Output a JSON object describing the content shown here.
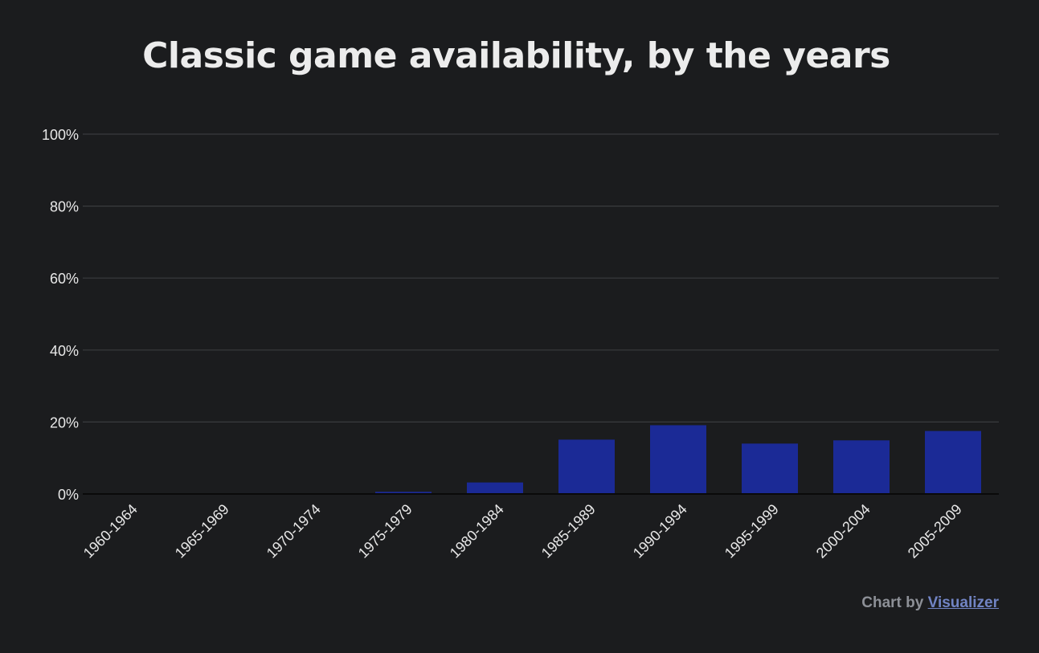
{
  "chart_data": {
    "type": "bar",
    "title": "Classic game availability, by the years",
    "xlabel": "",
    "ylabel": "",
    "categories": [
      "1960-1964",
      "1965-1969",
      "1970-1974",
      "1975-1979",
      "1980-1984",
      "1985-1989",
      "1990-1994",
      "1995-1999",
      "2000-2004",
      "2005-2009"
    ],
    "values": [
      0,
      0,
      0,
      0.6,
      3.2,
      15.1,
      19.1,
      14.0,
      14.9,
      17.5
    ],
    "ylim": [
      0,
      100
    ],
    "yticks": [
      0,
      20,
      40,
      60,
      80,
      100
    ],
    "ytick_labels": [
      "0%",
      "20%",
      "40%",
      "60%",
      "80%",
      "100%"
    ],
    "grid": true,
    "legend": "none",
    "colors": {
      "bar": "#1b2a96",
      "grid": "#3a3b3e",
      "axis": "#0a0a0a",
      "text": "#e8e8e8"
    }
  },
  "credit": {
    "prefix": "Chart by ",
    "link": "Visualizer"
  }
}
